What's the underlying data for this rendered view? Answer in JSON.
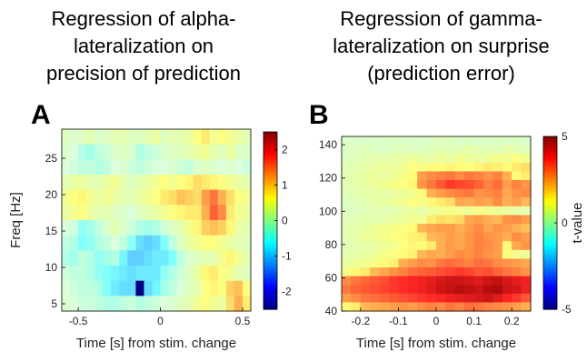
{
  "panel_a": {
    "letter": "A",
    "title_lines": [
      "Regression of alpha-",
      "lateralization on",
      "precision of prediction"
    ]
  },
  "panel_b": {
    "letter": "B",
    "title_lines": [
      "Regression of gamma-",
      "lateralization on surprise",
      "(prediction error)"
    ]
  },
  "chart_data": [
    {
      "type": "heatmap",
      "xlabel": "Time [s] from stim. change",
      "ylabel": "Freq [Hz]",
      "xlim": [
        -0.6,
        0.55
      ],
      "ylim": [
        4,
        29
      ],
      "xticks": [
        -0.5,
        0,
        0.5
      ],
      "xtick_labels": [
        "-0.5",
        "0",
        "0.5"
      ],
      "yticks": [
        5,
        10,
        15,
        20,
        25
      ],
      "ytick_labels": [
        "5",
        "10",
        "15",
        "20",
        "25"
      ],
      "colorbar": {
        "min": -2.5,
        "max": 2.5,
        "ticks": [
          -2,
          -1,
          0,
          1,
          2
        ],
        "tick_labels": [
          "-2",
          "-1",
          "0",
          "1",
          "2"
        ],
        "label": ""
      },
      "x": [
        -0.6,
        -0.55,
        -0.5,
        -0.45,
        -0.4,
        -0.35,
        -0.3,
        -0.25,
        -0.2,
        -0.15,
        -0.1,
        -0.05,
        0,
        0.05,
        0.1,
        0.15,
        0.2,
        0.25,
        0.3,
        0.35,
        0.4,
        0.45,
        0.5
      ],
      "y": [
        28,
        26,
        24,
        22,
        20,
        18,
        16,
        14,
        12,
        10,
        8,
        6
      ],
      "values": [
        [
          0.2,
          0.1,
          0.2,
          0.3,
          0.1,
          0.2,
          0.3,
          0.3,
          0.2,
          0.2,
          0.3,
          0.4,
          0.2,
          0.3,
          0.3,
          0.4,
          0.6,
          0.8,
          0.5,
          0.6,
          0.5,
          0.4,
          0.3
        ],
        [
          0.1,
          0.0,
          -0.3,
          -0.4,
          -0.2,
          -0.1,
          0.1,
          0.2,
          0.1,
          -0.3,
          -0.2,
          -0.1,
          0.1,
          0.2,
          0.2,
          0.3,
          0.4,
          0.5,
          0.3,
          0.2,
          0.4,
          0.2,
          0.1
        ],
        [
          0.0,
          -0.1,
          -0.2,
          -0.2,
          -0.3,
          -0.2,
          0.0,
          0.1,
          -0.1,
          -0.2,
          -0.1,
          0.0,
          0.0,
          0.1,
          -0.1,
          -0.2,
          0.1,
          0.2,
          0.1,
          0.0,
          0.1,
          0.0,
          -0.1
        ],
        [
          0.3,
          0.4,
          0.4,
          0.3,
          0.3,
          0.4,
          0.5,
          0.3,
          0.2,
          0.3,
          0.4,
          0.5,
          0.6,
          0.5,
          0.6,
          0.7,
          0.9,
          0.8,
          0.7,
          0.6,
          0.5,
          0.4,
          0.3
        ],
        [
          0.5,
          0.6,
          0.7,
          0.5,
          0.4,
          0.5,
          0.4,
          0.3,
          0.3,
          0.4,
          0.5,
          0.6,
          0.8,
          0.9,
          1.1,
          1.0,
          0.9,
          1.3,
          1.5,
          1.2,
          0.9,
          0.6,
          0.5
        ],
        [
          0.4,
          0.5,
          0.6,
          0.4,
          0.3,
          0.3,
          0.2,
          0.1,
          0.0,
          0.2,
          0.3,
          0.4,
          0.5,
          0.6,
          0.7,
          0.8,
          0.8,
          1.2,
          1.6,
          1.4,
          0.8,
          0.5,
          0.4
        ],
        [
          0.0,
          -0.1,
          -0.5,
          -0.4,
          -0.2,
          0.1,
          0.3,
          0.1,
          -0.1,
          -0.3,
          -0.4,
          -0.3,
          -0.1,
          0.2,
          0.3,
          0.5,
          0.7,
          1.0,
          1.1,
          1.0,
          0.7,
          0.4,
          0.3
        ],
        [
          -0.2,
          -0.3,
          -0.6,
          -0.5,
          -0.3,
          -0.2,
          0.0,
          -0.2,
          -0.5,
          -0.9,
          -1.0,
          -0.9,
          -0.6,
          -0.2,
          0.2,
          0.4,
          0.5,
          0.6,
          0.6,
          0.5,
          0.4,
          0.3,
          0.2
        ],
        [
          -0.3,
          -0.4,
          -0.2,
          -0.3,
          -0.5,
          -0.4,
          -0.3,
          -0.7,
          -1.0,
          -1.0,
          -0.9,
          -0.8,
          -0.8,
          -0.6,
          -0.2,
          0.1,
          0.2,
          0.3,
          0.3,
          0.5,
          0.7,
          0.5,
          0.3
        ],
        [
          -0.1,
          -0.2,
          -0.2,
          -0.3,
          -0.5,
          -0.6,
          -0.7,
          -0.8,
          -0.9,
          -0.8,
          -0.8,
          -0.8,
          -0.5,
          -0.3,
          -0.1,
          0.2,
          0.4,
          0.7,
          0.8,
          0.6,
          0.5,
          0.3,
          0.2
        ],
        [
          0.0,
          -0.1,
          -0.2,
          -0.2,
          -0.3,
          -0.6,
          -0.8,
          -0.9,
          -0.9,
          -2.6,
          -0.9,
          -0.7,
          -0.4,
          -0.2,
          0.0,
          0.2,
          0.3,
          0.6,
          0.7,
          0.6,
          1.0,
          1.1,
          0.6
        ],
        [
          0.1,
          0.0,
          -0.1,
          -0.1,
          -0.2,
          -0.3,
          -0.3,
          -0.2,
          -0.1,
          -0.3,
          -0.2,
          -0.1,
          0.0,
          0.1,
          0.2,
          0.3,
          0.5,
          0.6,
          0.5,
          0.4,
          0.9,
          1.2,
          0.8
        ]
      ]
    },
    {
      "type": "heatmap",
      "xlabel": "Time [s] from stim. change",
      "ylabel": "",
      "xlim": [
        -0.25,
        0.25
      ],
      "ylim": [
        40,
        145
      ],
      "xticks": [
        -0.2,
        -0.1,
        0,
        0.1,
        0.2
      ],
      "xtick_labels": [
        "-0.2",
        "-0.1",
        "0",
        "0.1",
        "0.2"
      ],
      "yticks": [
        40,
        60,
        80,
        100,
        120,
        140
      ],
      "ytick_labels": [
        "40",
        "60",
        "80",
        "100",
        "120",
        "140"
      ],
      "colorbar": {
        "min": -5,
        "max": 5,
        "ticks": [
          -5,
          0,
          5
        ],
        "tick_labels": [
          "-5",
          "0",
          "5"
        ],
        "label": "t-value"
      },
      "x": [
        -0.25,
        -0.225,
        -0.2,
        -0.175,
        -0.15,
        -0.125,
        -0.1,
        -0.075,
        -0.05,
        -0.025,
        0,
        0.025,
        0.05,
        0.075,
        0.1,
        0.125,
        0.15,
        0.175,
        0.2,
        0.225
      ],
      "y": [
        140,
        135,
        130,
        125,
        120,
        115,
        110,
        105,
        100,
        95,
        90,
        85,
        80,
        75,
        70,
        65,
        60,
        55,
        50,
        45
      ],
      "values": [
        [
          0.2,
          0.3,
          0.3,
          0.2,
          0.3,
          0.4,
          0.3,
          0.3,
          0.2,
          0.3,
          0.4,
          0.4,
          0.3,
          0.4,
          0.3,
          0.3,
          0.4,
          0.3,
          0.4,
          0.3
        ],
        [
          0.3,
          0.4,
          0.5,
          0.4,
          0.3,
          0.4,
          0.5,
          0.4,
          0.4,
          0.5,
          0.6,
          0.5,
          0.6,
          0.7,
          0.6,
          0.5,
          0.5,
          0.7,
          0.6,
          0.5
        ],
        [
          0.4,
          0.5,
          0.6,
          0.7,
          0.6,
          0.7,
          0.8,
          0.9,
          0.8,
          0.7,
          0.9,
          0.8,
          1.0,
          0.9,
          0.8,
          0.9,
          1.1,
          1.0,
          1.2,
          1.0
        ],
        [
          0.5,
          0.6,
          0.7,
          0.8,
          0.9,
          0.8,
          1.0,
          1.2,
          1.1,
          1.3,
          1.2,
          1.4,
          1.3,
          1.2,
          1.4,
          1.6,
          1.5,
          1.3,
          1.6,
          1.8
        ],
        [
          0.6,
          0.7,
          0.8,
          0.9,
          0.8,
          0.9,
          1.1,
          1.3,
          2.6,
          2.8,
          2.9,
          3.0,
          2.8,
          3.0,
          2.9,
          2.7,
          2.9,
          2.4,
          1.3,
          1.6
        ],
        [
          0.6,
          0.7,
          0.8,
          0.9,
          1.0,
          1.1,
          1.2,
          1.4,
          2.7,
          3.0,
          3.3,
          3.6,
          3.5,
          3.4,
          3.2,
          2.9,
          3.1,
          2.6,
          2.9,
          2.7
        ],
        [
          0.5,
          0.6,
          0.7,
          0.8,
          0.7,
          0.8,
          0.9,
          1.0,
          1.3,
          2.4,
          2.6,
          2.8,
          2.9,
          3.0,
          2.7,
          2.8,
          2.9,
          2.5,
          2.7,
          2.8
        ],
        [
          0.4,
          0.5,
          0.6,
          0.7,
          0.8,
          0.9,
          1.0,
          1.2,
          1.1,
          1.4,
          1.6,
          1.8,
          2.5,
          2.4,
          2.6,
          2.5,
          2.8,
          2.4,
          2.6,
          2.3
        ],
        [
          0.4,
          0.4,
          0.5,
          0.6,
          0.5,
          0.6,
          0.7,
          0.8,
          0.7,
          0.9,
          1.0,
          1.1,
          1.0,
          0.9,
          1.1,
          1.0,
          0.9,
          0.8,
          0.7,
          0.6
        ],
        [
          0.5,
          0.6,
          0.7,
          0.6,
          0.7,
          0.8,
          0.9,
          1.0,
          1.0,
          1.6,
          1.8,
          1.7,
          1.9,
          2.5,
          2.6,
          2.4,
          2.3,
          2.7,
          2.8,
          2.6
        ],
        [
          0.6,
          0.7,
          0.8,
          0.9,
          1.0,
          1.1,
          1.2,
          1.3,
          2.3,
          2.5,
          2.6,
          2.6,
          2.4,
          2.6,
          2.8,
          2.5,
          2.7,
          2.6,
          2.4,
          2.2
        ],
        [
          0.6,
          0.7,
          0.9,
          1.0,
          1.1,
          1.2,
          1.3,
          1.5,
          1.6,
          2.3,
          2.4,
          2.6,
          2.5,
          2.7,
          2.9,
          2.7,
          2.6,
          2.4,
          2.8,
          2.6
        ],
        [
          0.5,
          0.6,
          0.7,
          0.8,
          0.9,
          1.0,
          1.2,
          1.4,
          1.3,
          1.6,
          2.4,
          2.6,
          2.5,
          2.7,
          2.9,
          2.8,
          2.6,
          1.4,
          2.5,
          2.7
        ],
        [
          0.6,
          0.7,
          0.8,
          0.9,
          1.1,
          1.2,
          1.3,
          1.5,
          2.3,
          2.5,
          2.4,
          2.6,
          2.8,
          2.7,
          2.9,
          2.7,
          2.6,
          1.2,
          1.0,
          0.9
        ],
        [
          0.8,
          0.9,
          1.0,
          1.1,
          1.3,
          1.5,
          2.4,
          2.6,
          2.8,
          2.7,
          3.0,
          3.1,
          3.0,
          2.9,
          3.1,
          3.0,
          2.8,
          2.7,
          2.6,
          2.5
        ],
        [
          1.1,
          1.4,
          1.6,
          2.3,
          2.5,
          2.7,
          2.9,
          3.1,
          3.2,
          3.3,
          3.4,
          3.5,
          3.6,
          3.5,
          3.3,
          3.4,
          3.2,
          3.0,
          2.9,
          2.7
        ],
        [
          2.8,
          3.0,
          3.2,
          3.3,
          3.4,
          3.6,
          3.7,
          3.8,
          3.9,
          4.0,
          4.2,
          4.3,
          4.3,
          4.2,
          4.1,
          4.3,
          4.4,
          4.2,
          4.0,
          3.9
        ],
        [
          3.0,
          3.2,
          3.3,
          3.4,
          3.5,
          3.6,
          3.7,
          3.8,
          3.9,
          4.1,
          4.3,
          4.4,
          4.5,
          4.4,
          4.3,
          4.5,
          4.6,
          4.3,
          4.2,
          3.9
        ],
        [
          2.6,
          2.8,
          3.0,
          3.1,
          3.2,
          3.3,
          3.4,
          3.5,
          3.6,
          3.7,
          3.8,
          3.9,
          4.0,
          4.1,
          4.2,
          4.3,
          4.1,
          3.8,
          3.6,
          3.3
        ],
        [
          1.4,
          1.6,
          2.3,
          2.4,
          2.5,
          2.6,
          2.7,
          2.6,
          2.8,
          2.9,
          2.8,
          3.0,
          2.9,
          3.1,
          3.0,
          2.9,
          2.8,
          2.7,
          2.6,
          2.4
        ]
      ]
    }
  ]
}
